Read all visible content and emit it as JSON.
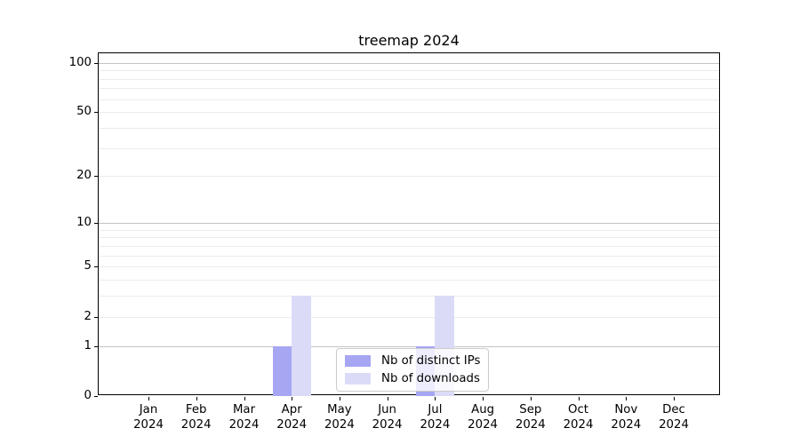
{
  "chart_data": {
    "type": "bar",
    "title": "treemap 2024",
    "categories": [
      [
        "Jan",
        "2024"
      ],
      [
        "Feb",
        "2024"
      ],
      [
        "Mar",
        "2024"
      ],
      [
        "Apr",
        "2024"
      ],
      [
        "May",
        "2024"
      ],
      [
        "Jun",
        "2024"
      ],
      [
        "Jul",
        "2024"
      ],
      [
        "Aug",
        "2024"
      ],
      [
        "Sep",
        "2024"
      ],
      [
        "Oct",
        "2024"
      ],
      [
        "Nov",
        "2024"
      ],
      [
        "Dec",
        "2024"
      ]
    ],
    "series": [
      {
        "name": "Nb of distinct IPs",
        "color": "#a6a6f3",
        "values": [
          0,
          0,
          0,
          1,
          0,
          0,
          1,
          0,
          0,
          0,
          0,
          0
        ]
      },
      {
        "name": "Nb of downloads",
        "color": "#dbdbf8",
        "values": [
          0,
          0,
          0,
          3,
          0,
          0,
          3,
          0,
          0,
          0,
          0,
          0
        ]
      }
    ],
    "xlabel": "",
    "ylabel": "",
    "y_scale": "log10(1+x)",
    "ylim": [
      0,
      114
    ],
    "y_ticks_labeled": [
      0,
      1,
      2,
      5,
      10,
      20,
      50,
      100
    ],
    "y_grid_major": [
      1,
      10,
      100
    ],
    "y_grid_minor": [
      2,
      3,
      4,
      5,
      6,
      7,
      8,
      9,
      20,
      30,
      40,
      50,
      60,
      70,
      80,
      90
    ],
    "grid": "horizontal",
    "legend": {
      "position": "lower center",
      "entries": [
        "Nb of distinct IPs",
        "Nb of downloads"
      ]
    },
    "colors": {
      "grid_major": "#c4c4c4",
      "grid_minor": "#ececec",
      "spine": "#000000",
      "background": "#ffffff"
    }
  }
}
